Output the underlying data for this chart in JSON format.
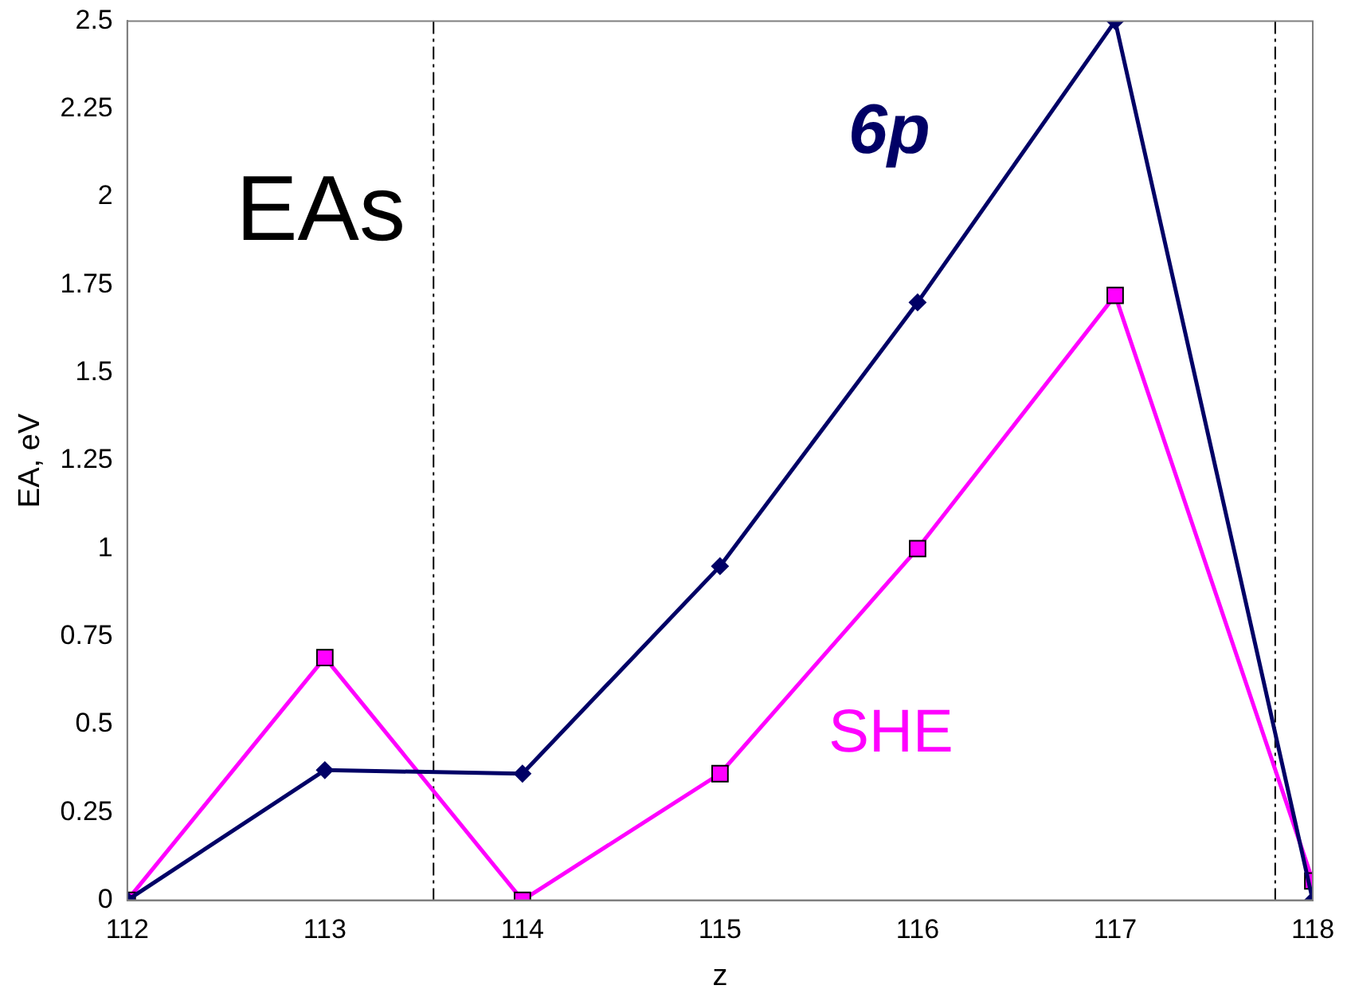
{
  "chart_data": {
    "type": "line",
    "xlabel": "z",
    "ylabel": "EA, eV",
    "x": [
      112,
      113,
      114,
      115,
      116,
      117,
      118
    ],
    "series": [
      {
        "color": "#000066",
        "marker": "diamond",
        "values": [
          0,
          0.37,
          0.36,
          0.95,
          1.7,
          2.5,
          0
        ]
      },
      {
        "name": "SHE",
        "color": "#ff00ff",
        "marker": "square",
        "values": [
          0,
          0.69,
          0,
          0.36,
          1.0,
          1.72,
          0.055
        ]
      }
    ],
    "xlim": [
      112,
      118
    ],
    "xticks": [
      112,
      113,
      114,
      115,
      116,
      117,
      118
    ],
    "ylim": [
      0,
      2.5
    ],
    "yticks": [
      0,
      0.25,
      0.5,
      0.75,
      1,
      1.25,
      1.5,
      1.75,
      2,
      2.25,
      2.5
    ],
    "ref_lines": [
      {
        "axis": "x",
        "value": 113.55,
        "color": "#000000",
        "line_style": "dashed"
      },
      {
        "axis": "x",
        "value": 117.81,
        "color": "#000000",
        "line_style": "dashed"
      }
    ],
    "annotations": [
      "EAs",
      "6p"
    ],
    "grid": false,
    "legend": false
  }
}
